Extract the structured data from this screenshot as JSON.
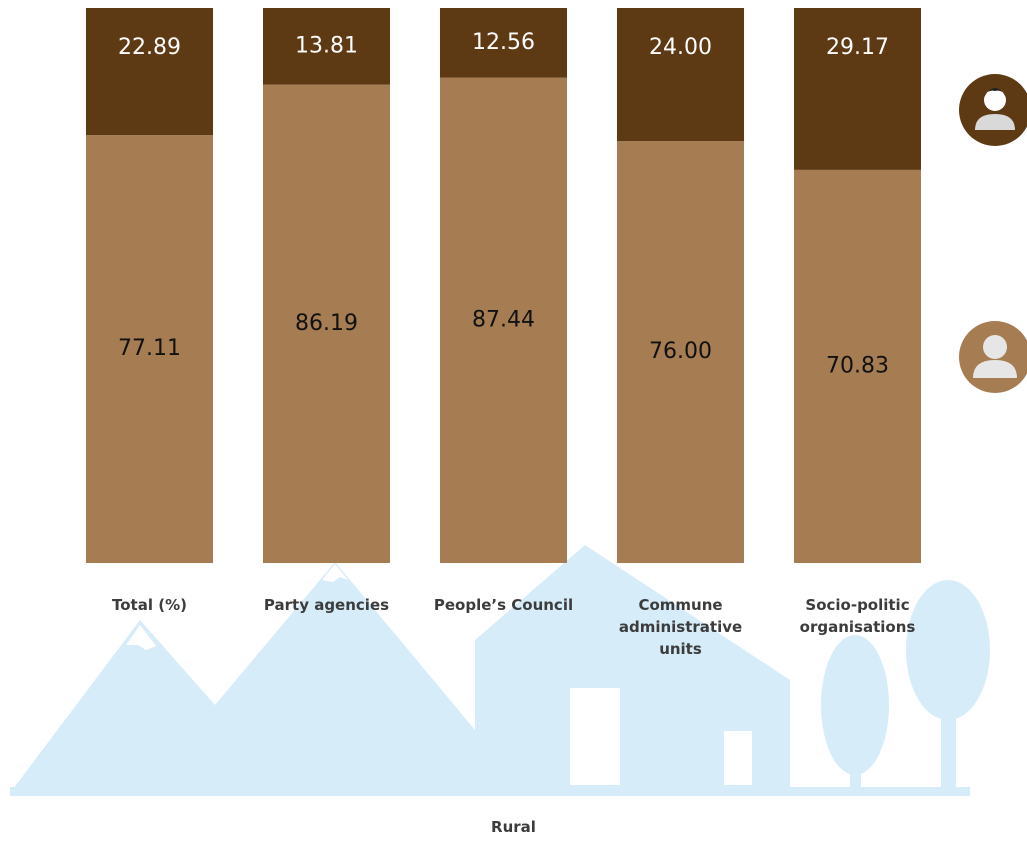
{
  "chart_data": {
    "type": "stacked_bar",
    "categories": [
      "Total (%)",
      "Party agencies",
      "People’s Council",
      "Commune administrative units",
      "Socio-politic organisations"
    ],
    "series": [
      {
        "color": "#a67c52",
        "values": [
          77.11,
          86.19,
          87.44,
          76,
          70.83
        ],
        "value_labels": [
          "77.11",
          "86.19",
          "87.44",
          "76.00",
          "70.83"
        ]
      },
      {
        "color": "#5e3a14",
        "values": [
          22.89,
          13.81,
          12.56,
          24,
          29.17
        ],
        "value_labels": [
          "22.89",
          "13.81",
          "12.56",
          "24.00",
          "29.17"
        ]
      }
    ],
    "ylim": [
      0,
      100
    ],
    "xlabel": "Rural"
  }
}
